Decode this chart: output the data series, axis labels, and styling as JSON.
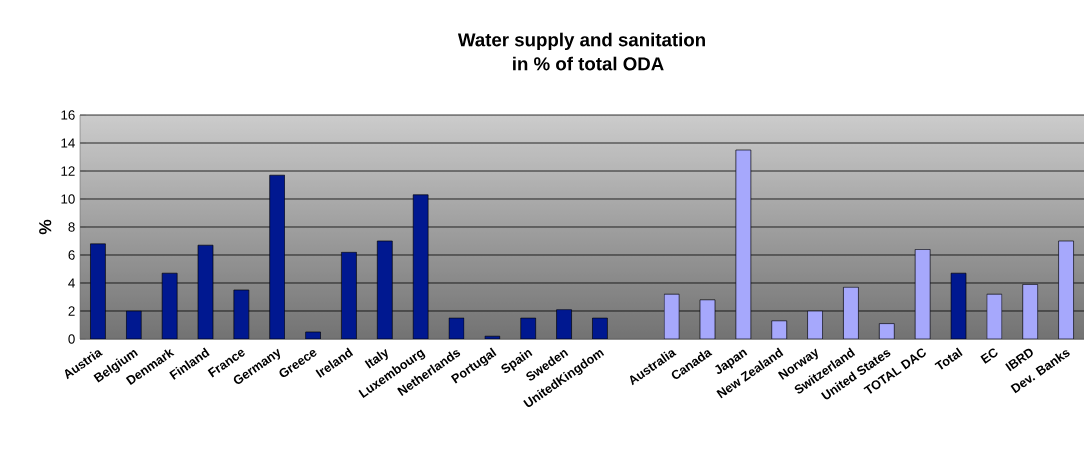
{
  "chart_data": {
    "type": "bar",
    "title": "Water supply and sanitation",
    "subtitle": "in % of total ODA",
    "ylabel": "%",
    "categories": [
      "Austria",
      "Belgium",
      "Denmark",
      "Finland",
      "France",
      "Germany",
      "Greece",
      "Ireland",
      "Italy",
      "Luxembourg",
      "Netherlands",
      "Portugal",
      "Spain",
      "Sweden",
      "UnitedKingdom",
      null,
      "Australia",
      "Canada",
      "Japan",
      "New Zealand",
      "Norway",
      "Switzerland",
      "United States",
      "TOTAL DAC",
      "Total",
      "EC",
      "IBRD",
      "Dev. Banks"
    ],
    "values": [
      6.8,
      2.0,
      4.7,
      6.7,
      3.5,
      11.7,
      0.5,
      6.2,
      7.0,
      10.3,
      1.5,
      0.2,
      1.5,
      2.1,
      1.5,
      null,
      3.2,
      2.8,
      13.5,
      1.3,
      2.0,
      3.7,
      1.1,
      6.4,
      4.7,
      3.2,
      3.9,
      7.0
    ],
    "colors": [
      "#001890",
      "#001890",
      "#001890",
      "#001890",
      "#001890",
      "#001890",
      "#001890",
      "#001890",
      "#001890",
      "#001890",
      "#001890",
      "#001890",
      "#001890",
      "#001890",
      "#001890",
      null,
      "#a6a8fc",
      "#a6a8fc",
      "#a6a8fc",
      "#a6a8fc",
      "#a6a8fc",
      "#a6a8fc",
      "#a6a8fc",
      "#a6a8fc",
      "#001890",
      "#a6a8fc",
      "#a6a8fc",
      "#a6a8fc"
    ],
    "ylim": [
      0,
      16
    ],
    "yticks": [
      0,
      2,
      4,
      6,
      8,
      10,
      12,
      14,
      16
    ],
    "grid": "y"
  }
}
